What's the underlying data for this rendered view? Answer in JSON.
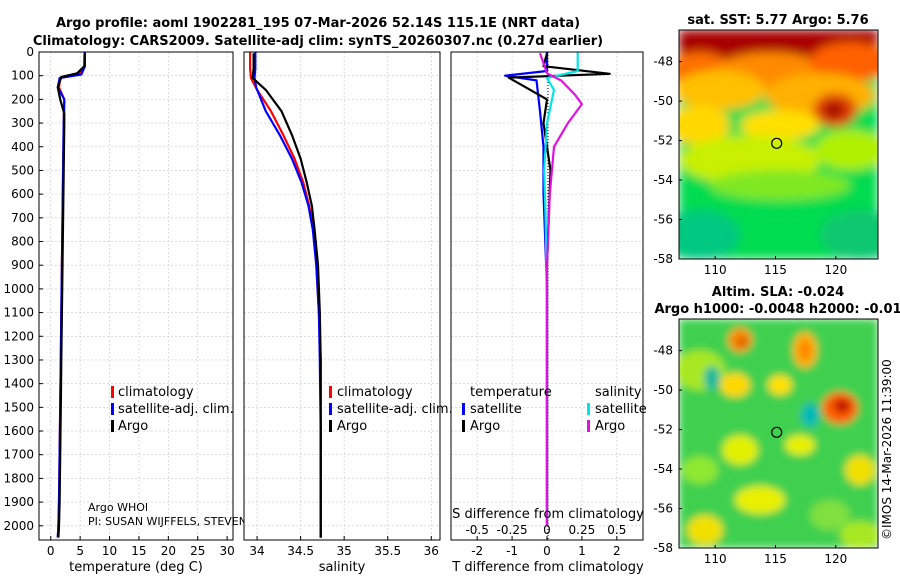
{
  "figure": {
    "title_line1": "Argo profile: aoml 1902281_195 07-Mar-2026 52.14S 115.1E (NRT data)",
    "title_line2": "Climatology: CARS2009. Satellite-adj clim: synTS_20260307.nc (0.27d earlier)",
    "credit": "©IMOS 14-Mar-2026 11:39:00",
    "argo_info_line1": "Argo WHOI",
    "argo_info_line2": "PI: SUSAN WIJFFELS, STEVEN"
  },
  "colors": {
    "climatology": "#ff0000",
    "satellite_adj": "#0000ff",
    "argo": "#000000",
    "satellite_s": "#00e5e5",
    "argo_s": "#e010e0",
    "grid": "#c8c8c8"
  },
  "chart_data": [
    {
      "type": "line",
      "id": "temperature",
      "xlabel": "temperature (deg C)",
      "ylabel": "",
      "xlim": [
        -2,
        31
      ],
      "ylim": [
        2060,
        0
      ],
      "xticks": [
        0,
        5,
        10,
        15,
        20,
        25,
        30
      ],
      "yticks": [
        0,
        100,
        200,
        300,
        400,
        500,
        600,
        700,
        800,
        900,
        1000,
        1100,
        1200,
        1300,
        1400,
        1500,
        1600,
        1700,
        1800,
        1900,
        2000
      ],
      "legend": [
        "climatology",
        "satellite-adj. clim.",
        "Argo"
      ],
      "legend_placement": "bottom-right",
      "series": [
        {
          "name": "climatology",
          "x": [
            5.8,
            5.8,
            5.0,
            1.6,
            1.4,
            2.3,
            2.2,
            2.1,
            2.0,
            1.9,
            1.8,
            1.7,
            1.6,
            1.5,
            1.4,
            1.3,
            1.2
          ],
          "y": [
            0,
            60,
            90,
            110,
            150,
            200,
            300,
            500,
            700,
            900,
            1100,
            1300,
            1500,
            1700,
            1900,
            2000,
            2050
          ]
        },
        {
          "name": "satellite-adj. clim.",
          "x": [
            5.8,
            5.8,
            5.2,
            1.5,
            1.2,
            2.3,
            2.2,
            2.1,
            2.0,
            1.9,
            1.8,
            1.7,
            1.6,
            1.5,
            1.4,
            1.3,
            1.2
          ],
          "y": [
            0,
            60,
            95,
            110,
            150,
            200,
            300,
            500,
            700,
            900,
            1100,
            1300,
            1500,
            1700,
            1900,
            2000,
            2050
          ]
        },
        {
          "name": "Argo",
          "x": [
            5.76,
            5.7,
            4.5,
            1.8,
            1.2,
            1.6,
            2.3,
            2.3,
            2.2,
            2.1,
            2.0,
            1.9,
            1.8,
            1.7,
            1.6,
            1.5,
            1.4,
            1.3
          ],
          "y": [
            5,
            60,
            90,
            105,
            150,
            200,
            260,
            300,
            500,
            700,
            900,
            1100,
            1300,
            1500,
            1700,
            1900,
            2000,
            2050
          ]
        }
      ]
    },
    {
      "type": "line",
      "id": "salinity",
      "xlabel": "salinity",
      "xlim": [
        33.85,
        36.1
      ],
      "ylim": [
        2060,
        0
      ],
      "xticks": [
        34,
        34.5,
        35,
        35.5,
        36
      ],
      "legend": [
        "climatology",
        "satellite-adj. clim.",
        "Argo"
      ],
      "legend_placement": "bottom-right",
      "series": [
        {
          "name": "climatology",
          "x": [
            33.92,
            33.92,
            33.93,
            34.0,
            34.16,
            34.3,
            34.43,
            34.53,
            34.6,
            34.65,
            34.68,
            34.71,
            34.73,
            34.73,
            34.73,
            34.73
          ],
          "y": [
            0,
            70,
            110,
            160,
            250,
            350,
            450,
            550,
            650,
            750,
            900,
            1100,
            1300,
            1600,
            1900,
            2050
          ]
        },
        {
          "name": "satellite-adj. clim.",
          "x": [
            33.98,
            33.98,
            33.97,
            33.99,
            34.1,
            34.26,
            34.4,
            34.51,
            34.59,
            34.64,
            34.68,
            34.71,
            34.72,
            34.73,
            34.73,
            34.73
          ],
          "y": [
            0,
            70,
            110,
            150,
            250,
            350,
            450,
            550,
            650,
            750,
            900,
            1100,
            1300,
            1600,
            1900,
            2050
          ]
        },
        {
          "name": "Argo",
          "x": [
            33.96,
            33.96,
            33.95,
            34.1,
            34.28,
            34.4,
            34.5,
            34.57,
            34.63,
            34.66,
            34.7,
            34.72,
            34.73,
            34.73,
            34.73,
            34.73
          ],
          "y": [
            5,
            70,
            110,
            160,
            250,
            350,
            450,
            550,
            650,
            750,
            900,
            1100,
            1300,
            1600,
            1900,
            2050
          ]
        }
      ]
    },
    {
      "type": "line",
      "id": "difference",
      "xlabel": "T difference from climatology",
      "xlabel_top": "S difference from climatology",
      "xlim": [
        -2.75,
        2.75
      ],
      "ylim": [
        2060,
        0
      ],
      "xticks": [
        -2,
        -1,
        0,
        1,
        2
      ],
      "s_ticks": [
        -0.5,
        -0.25,
        0,
        0.25,
        0.5
      ],
      "s_tick_labels": [
        "-0.5",
        "-0.25",
        "0",
        "0.25",
        "0.5"
      ],
      "legend": {
        "temperature_header": "temperature",
        "salinity_header": "salinity",
        "t_items": [
          "satellite",
          "Argo"
        ],
        "s_items": [
          "satellite",
          "Argo"
        ]
      },
      "legend_placement": "bottom",
      "series": [
        {
          "name": "T satellite",
          "x": [
            0.0,
            0.0,
            -1.2,
            -0.3,
            -0.2,
            -0.1,
            -0.1,
            -0.05,
            0.0,
            0.0,
            0.0,
            0.0
          ],
          "y": [
            0,
            80,
            100,
            120,
            250,
            400,
            600,
            800,
            1000,
            1400,
            1800,
            2000
          ]
        },
        {
          "name": "T Argo",
          "x": [
            0.0,
            -0.1,
            1.8,
            -1.1,
            0.0,
            -0.1,
            0.1,
            0.05,
            0.0,
            0.0,
            0.0,
            0.0
          ],
          "y": [
            5,
            60,
            92,
            108,
            200,
            300,
            500,
            700,
            900,
            1300,
            1700,
            2000
          ]
        },
        {
          "name": "S satellite",
          "x": [
            0.22,
            0.22,
            0.0,
            0.05,
            0.0,
            -0.02,
            -0.01,
            0.0,
            0.0,
            0.0,
            0.0
          ],
          "y": [
            0,
            80,
            110,
            160,
            300,
            500,
            700,
            1000,
            1400,
            1800,
            2000
          ]
        },
        {
          "name": "S Argo",
          "x": [
            -0.05,
            0.0,
            0.1,
            0.2,
            0.25,
            0.15,
            0.05,
            0.02,
            0.0,
            0.0,
            0.0,
            0.0
          ],
          "y": [
            5,
            90,
            120,
            180,
            220,
            300,
            400,
            600,
            900,
            1300,
            1700,
            2000
          ]
        }
      ]
    },
    {
      "type": "heatmap",
      "id": "sst_map",
      "title": "sat. SST: 5.77 Argo: 5.76",
      "xlim": [
        107,
        123.5
      ],
      "ylim": [
        -58,
        -46.4
      ],
      "xticks": [
        110,
        115,
        120
      ],
      "yticks": [
        -48,
        -50,
        -52,
        -54,
        -56,
        -58
      ],
      "marker": {
        "lon": 115.1,
        "lat": -52.14
      }
    },
    {
      "type": "heatmap",
      "id": "sla_map",
      "title_line1": "Altim. SLA: -0.024",
      "title_line2": "Argo h1000: -0.0048 h2000: -0.01",
      "xlim": [
        107,
        123.5
      ],
      "ylim": [
        -58,
        -46.4
      ],
      "xticks": [
        110,
        115,
        120
      ],
      "yticks": [
        -48,
        -50,
        -52,
        -54,
        -56,
        -58
      ],
      "marker": {
        "lon": 115.1,
        "lat": -52.14
      }
    }
  ]
}
